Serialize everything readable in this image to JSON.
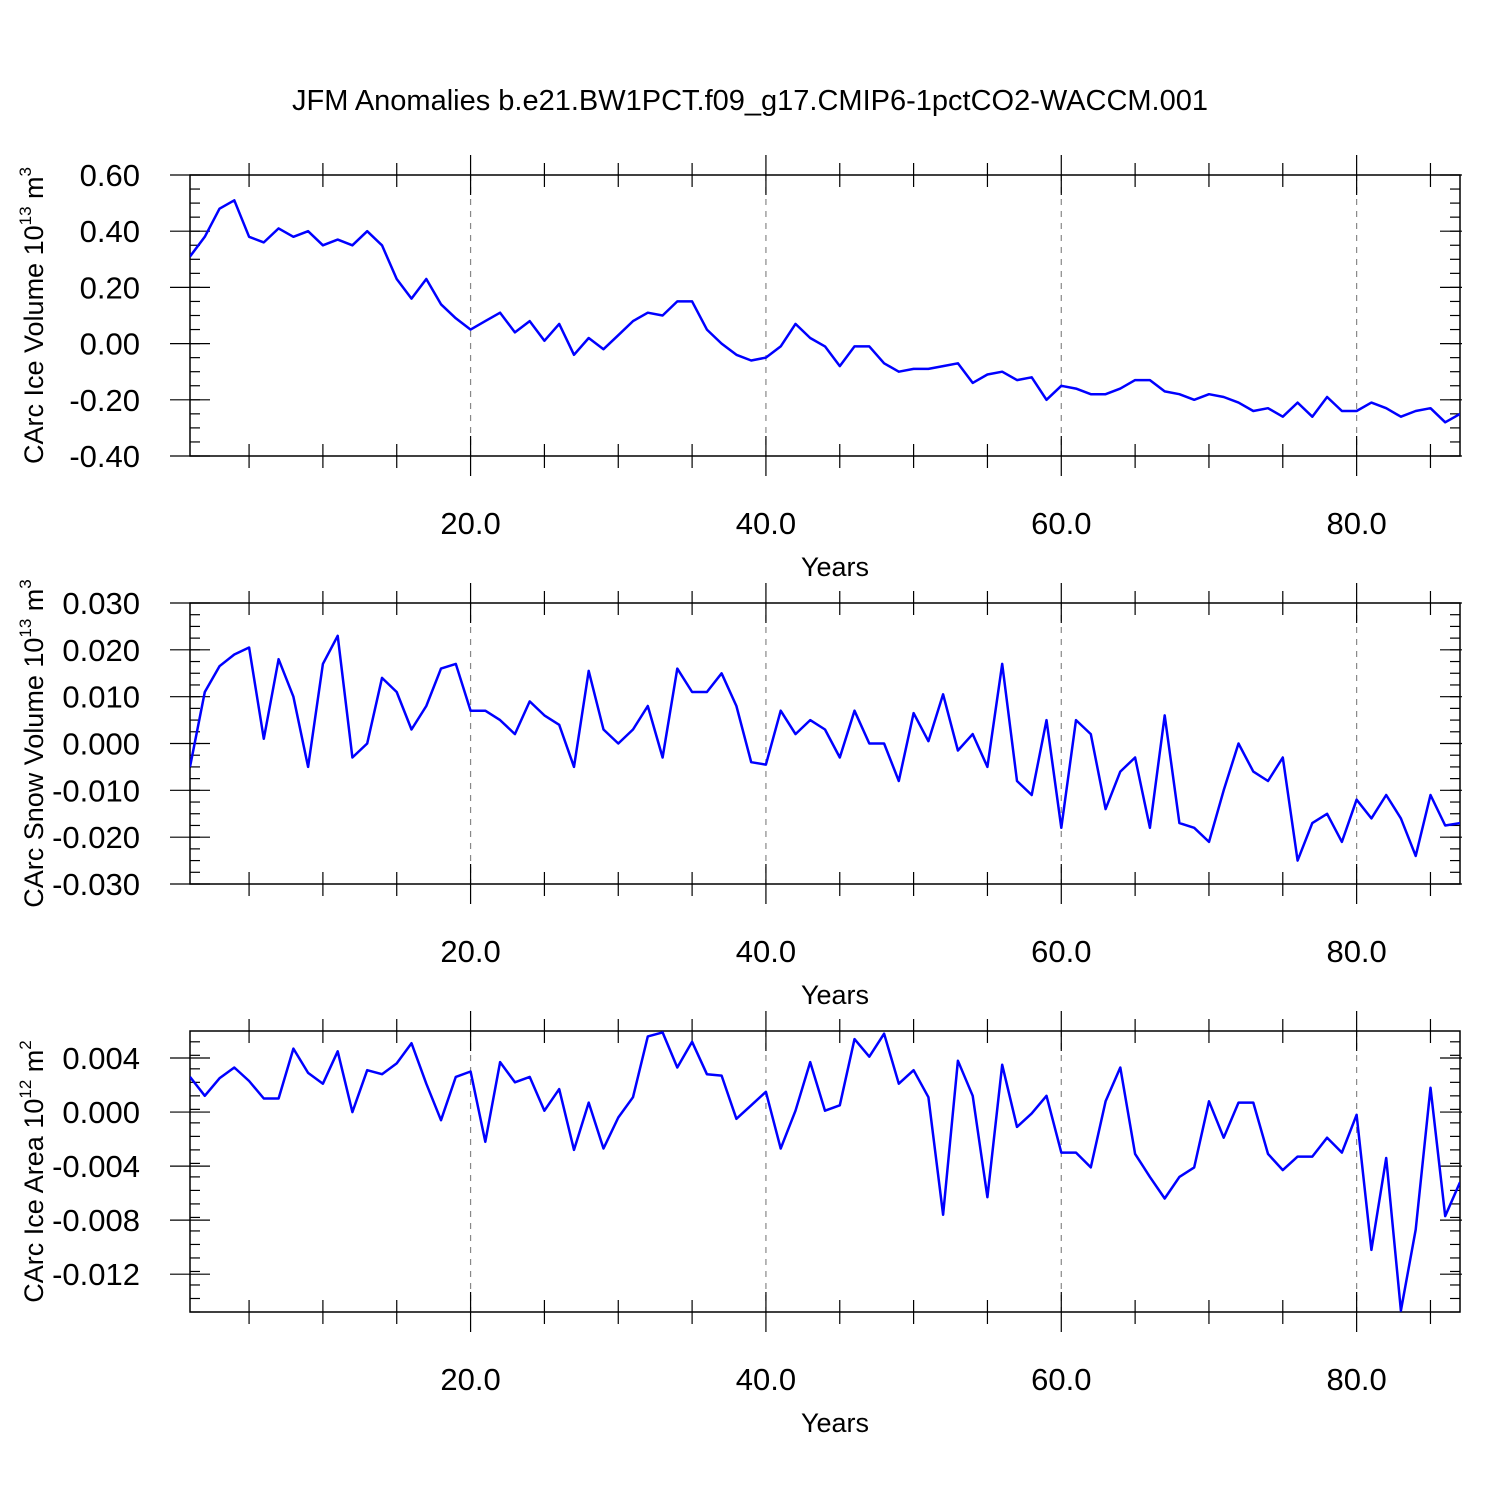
{
  "title": "JFM Anomalies b.e21.BW1PCT.f09_g17.CMIP6-1pctCO2-WACCM.001",
  "colors": {
    "series": "#0000ff",
    "grid": "#888888"
  },
  "chart_data": [
    {
      "type": "line",
      "ylabel": {
        "text": "CArc Ice Volume 10",
        "exp": "13",
        "unit": " m",
        "unit_exp": "3"
      },
      "xlabel": "Years",
      "xlim": [
        1,
        87
      ],
      "ylim": [
        -0.4,
        0.6
      ],
      "xticks": [
        20,
        40,
        60,
        80
      ],
      "xtick_labels": [
        "20.0",
        "40.0",
        "60.0",
        "80.0"
      ],
      "yticks": [
        -0.4,
        -0.2,
        0.0,
        0.2,
        0.4,
        0.6
      ],
      "ytick_labels": [
        "-0.40",
        "-0.20",
        "0.00",
        "0.20",
        "0.40",
        "0.60"
      ],
      "y_minor_step": 0.05,
      "grid": "vertical dashed at major x ticks",
      "series": [
        {
          "x_start": 1,
          "values": [
            0.31,
            0.38,
            0.48,
            0.51,
            0.38,
            0.36,
            0.41,
            0.38,
            0.4,
            0.35,
            0.37,
            0.35,
            0.4,
            0.35,
            0.23,
            0.16,
            0.23,
            0.14,
            0.09,
            0.05,
            0.08,
            0.11,
            0.04,
            0.08,
            0.01,
            0.07,
            -0.04,
            0.02,
            -0.02,
            0.03,
            0.08,
            0.11,
            0.1,
            0.15,
            0.15,
            0.05,
            0.0,
            -0.04,
            -0.06,
            -0.05,
            -0.01,
            0.07,
            0.02,
            -0.01,
            -0.08,
            -0.01,
            -0.01,
            -0.07,
            -0.1,
            -0.09,
            -0.09,
            -0.08,
            -0.07,
            -0.14,
            -0.11,
            -0.1,
            -0.13,
            -0.12,
            -0.2,
            -0.15,
            -0.16,
            -0.18,
            -0.18,
            -0.16,
            -0.13,
            -0.13,
            -0.17,
            -0.18,
            -0.2,
            -0.18,
            -0.19,
            -0.21,
            -0.24,
            -0.23,
            -0.26,
            -0.21,
            -0.26,
            -0.19,
            -0.24,
            -0.24,
            -0.21,
            -0.23,
            -0.26,
            -0.24,
            -0.23,
            -0.28,
            -0.25
          ]
        }
      ]
    },
    {
      "type": "line",
      "ylabel": {
        "text": "CArc Snow Volume 10",
        "exp": "13",
        "unit": " m",
        "unit_exp": "3"
      },
      "xlabel": "Years",
      "xlim": [
        1,
        87
      ],
      "ylim": [
        -0.03,
        0.03
      ],
      "xticks": [
        20,
        40,
        60,
        80
      ],
      "xtick_labels": [
        "20.0",
        "40.0",
        "60.0",
        "80.0"
      ],
      "yticks": [
        -0.03,
        -0.02,
        -0.01,
        0.0,
        0.01,
        0.02,
        0.03
      ],
      "ytick_labels": [
        "-0.030",
        "-0.020",
        "-0.010",
        "0.000",
        "0.010",
        "0.020",
        "0.030"
      ],
      "y_minor_step": 0.0025,
      "grid": "vertical dashed at major x ticks",
      "series": [
        {
          "x_start": 1,
          "values": [
            -0.005,
            0.011,
            0.0165,
            0.019,
            0.0205,
            0.001,
            0.018,
            0.01,
            -0.005,
            0.017,
            0.023,
            -0.003,
            0.0,
            0.014,
            0.011,
            0.003,
            0.008,
            0.016,
            0.017,
            0.007,
            0.007,
            0.005,
            0.002,
            0.009,
            0.006,
            0.004,
            -0.005,
            0.0155,
            0.003,
            0.0,
            0.003,
            0.008,
            -0.003,
            0.016,
            0.011,
            0.011,
            0.015,
            0.008,
            -0.004,
            -0.0045,
            0.007,
            0.002,
            0.005,
            0.003,
            -0.003,
            0.007,
            0.0,
            0.0,
            -0.008,
            0.0065,
            0.0005,
            0.0105,
            -0.0015,
            0.002,
            -0.005,
            0.017,
            -0.008,
            -0.011,
            0.005,
            -0.018,
            0.005,
            0.002,
            -0.014,
            -0.006,
            -0.003,
            -0.018,
            0.006,
            -0.017,
            -0.018,
            -0.021,
            -0.01,
            0.0,
            -0.006,
            -0.008,
            -0.003,
            -0.025,
            -0.017,
            -0.015,
            -0.021,
            -0.012,
            -0.016,
            -0.011,
            -0.016,
            -0.024,
            -0.011,
            -0.0175,
            -0.017
          ]
        }
      ]
    },
    {
      "type": "line",
      "ylabel": {
        "text": "CArc Ice Area 10",
        "exp": "12",
        "unit": " m",
        "unit_exp": "2"
      },
      "xlabel": "Years",
      "xlim": [
        1,
        87
      ],
      "ylim": [
        -0.0148,
        0.006
      ],
      "xticks": [
        20,
        40,
        60,
        80
      ],
      "xtick_labels": [
        "20.0",
        "40.0",
        "60.0",
        "80.0"
      ],
      "yticks": [
        -0.012,
        -0.008,
        -0.004,
        0.0,
        0.004
      ],
      "ytick_labels": [
        "-0.012",
        "-0.008",
        "-0.004",
        "0.000",
        "0.004"
      ],
      "y_minor_step": 0.001,
      "grid": "vertical dashed at major x ticks",
      "series": [
        {
          "x_start": 1,
          "values": [
            0.0026,
            0.0012,
            0.0025,
            0.0033,
            0.0023,
            0.001,
            0.001,
            0.0047,
            0.0029,
            0.0021,
            0.0045,
            0.0,
            0.0031,
            0.0028,
            0.0036,
            0.0051,
            0.0021,
            -0.0006,
            0.0026,
            0.003,
            -0.0022,
            0.0037,
            0.0022,
            0.0026,
            0.0001,
            0.0017,
            -0.0028,
            0.0007,
            -0.0027,
            -0.0004,
            0.0011,
            0.0056,
            0.0059,
            0.0033,
            0.0052,
            0.0028,
            0.0027,
            -0.0005,
            0.0005,
            0.0015,
            -0.0027,
            0.0001,
            0.0037,
            0.0001,
            0.0005,
            0.0054,
            0.0041,
            0.0058,
            0.0021,
            0.0031,
            0.0011,
            -0.0076,
            0.0038,
            0.0012,
            -0.0063,
            0.0035,
            -0.0011,
            -0.0001,
            0.0012,
            -0.003,
            -0.003,
            -0.0041,
            0.0008,
            0.0033,
            -0.0031,
            -0.0048,
            -0.0064,
            -0.0048,
            -0.0041,
            0.0008,
            -0.0019,
            0.0007,
            0.0007,
            -0.0031,
            -0.0043,
            -0.0033,
            -0.0033,
            -0.0019,
            -0.003,
            -0.0002,
            -0.0102,
            -0.0034,
            -0.0147,
            -0.0087,
            0.0018,
            -0.0077,
            -0.0052
          ]
        }
      ]
    }
  ]
}
